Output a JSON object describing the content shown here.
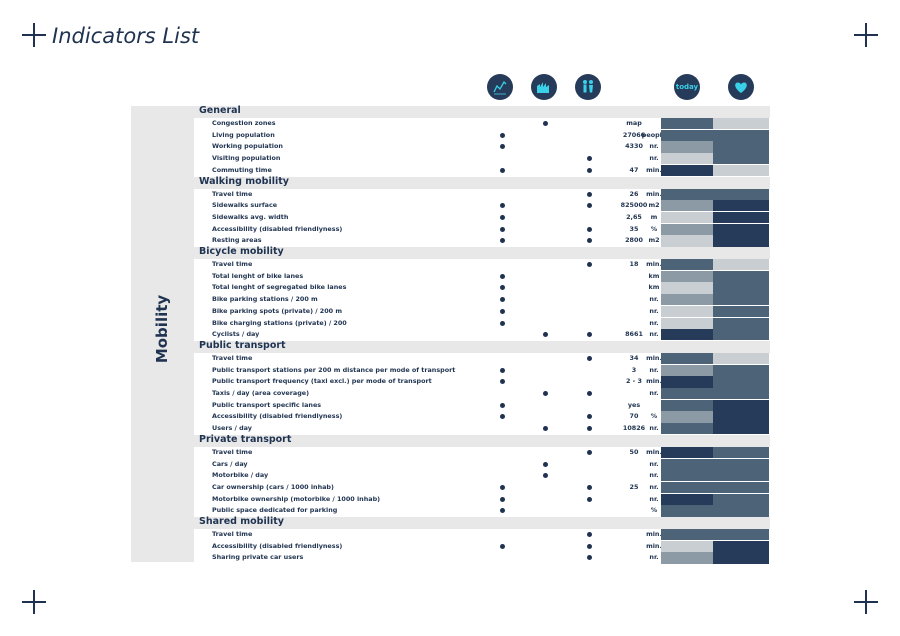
{
  "title": "Indicators List",
  "side_label": "Mobility",
  "header_icons": [
    "trend-chart-icon",
    "city-icon",
    "people-icon"
  ],
  "today_label": "today",
  "heart_icon": "heart-icon",
  "colors": {
    "navy": "#263a5a",
    "slate": "#4d6478",
    "steel": "#8c9aa6",
    "light": "#c9ced2",
    "accent": "#3ad0e8"
  },
  "sections": [
    {
      "title": "General",
      "rows": [
        {
          "label": "Congestion zones",
          "unit": "",
          "dots": [
            0,
            1,
            0
          ],
          "value": "map",
          "today": "slate",
          "heart": "light"
        },
        {
          "label": "Living population",
          "unit": "people",
          "dots": [
            1,
            0,
            0
          ],
          "value": "27066",
          "today": "slate",
          "heart": "slate"
        },
        {
          "label": "Working population",
          "unit": "nr.",
          "dots": [
            1,
            0,
            0
          ],
          "value": "4330",
          "today": "steel",
          "heart": "slate"
        },
        {
          "label": "Visiting population",
          "unit": "nr.",
          "dots": [
            0,
            0,
            1
          ],
          "value": "",
          "today": "light",
          "heart": "slate"
        },
        {
          "label": "Commuting time",
          "unit": "min.",
          "dots": [
            1,
            0,
            1
          ],
          "value": "47",
          "today": "navy",
          "heart": "light"
        }
      ]
    },
    {
      "title": "Walking mobility",
      "rows": [
        {
          "label": "Travel time",
          "unit": "min.",
          "dots": [
            0,
            0,
            1
          ],
          "value": "26",
          "today": "slate",
          "heart": "slate"
        },
        {
          "label": "Sidewalks surface",
          "unit": "m2",
          "dots": [
            1,
            0,
            1
          ],
          "value": "825000",
          "today": "steel",
          "heart": "navy"
        },
        {
          "label": "Sidewalks avg. width",
          "unit": "m",
          "dots": [
            1,
            0,
            0
          ],
          "value": "2,65",
          "today": "light",
          "heart": "navy"
        },
        {
          "label": "Accessibility (disabled friendlyness)",
          "unit": "%",
          "dots": [
            1,
            0,
            1
          ],
          "value": "35",
          "today": "steel",
          "heart": "navy"
        },
        {
          "label": "Resting areas",
          "unit": "m2",
          "dots": [
            1,
            0,
            1
          ],
          "value": "2800",
          "today": "light",
          "heart": "navy"
        }
      ]
    },
    {
      "title": "Bicycle mobility",
      "rows": [
        {
          "label": "Travel time",
          "unit": "min.",
          "dots": [
            0,
            0,
            1
          ],
          "value": "18",
          "today": "slate",
          "heart": "light"
        },
        {
          "label": "Total lenght of bike lanes",
          "unit": "km",
          "dots": [
            1,
            0,
            0
          ],
          "value": "",
          "today": "steel",
          "heart": "slate"
        },
        {
          "label": "Total lenght of segregated bike lanes",
          "unit": "km",
          "dots": [
            1,
            0,
            0
          ],
          "value": "",
          "today": "light",
          "heart": "slate"
        },
        {
          "label": "Bike parking stations / 200 m",
          "unit": "nr.",
          "dots": [
            1,
            0,
            0
          ],
          "value": "",
          "today": "steel",
          "heart": "slate"
        },
        {
          "label": "Bike parking spots (private) / 200 m",
          "unit": "nr.",
          "dots": [
            1,
            0,
            0
          ],
          "value": "",
          "today": "light",
          "heart": "slate"
        },
        {
          "label": "Bike charging stations (private) / 200",
          "unit": "nr.",
          "dots": [
            1,
            0,
            0
          ],
          "value": "",
          "today": "light",
          "heart": "slate"
        },
        {
          "label": "Cyclists / day",
          "unit": "nr.",
          "dots": [
            0,
            1,
            1
          ],
          "value": "8661",
          "today": "navy",
          "heart": "slate"
        }
      ]
    },
    {
      "title": "Public transport",
      "rows": [
        {
          "label": "Travel time",
          "unit": "min.",
          "dots": [
            0,
            0,
            1
          ],
          "value": "34",
          "today": "slate",
          "heart": "light"
        },
        {
          "label": "Public transport stations per 200 m distance per mode of transport",
          "unit": "nr.",
          "dots": [
            1,
            0,
            0
          ],
          "value": "3",
          "today": "steel",
          "heart": "slate"
        },
        {
          "label": "Public transport frequency (taxi excl.) per mode of transport",
          "unit": "min.",
          "dots": [
            1,
            0,
            0
          ],
          "value": "2 - 3",
          "today": "navy",
          "heart": "slate"
        },
        {
          "label": "Taxis / day (area coverage)",
          "unit": "nr.",
          "dots": [
            0,
            1,
            1
          ],
          "value": "",
          "today": "slate",
          "heart": "slate"
        },
        {
          "label": "Public transport specific lanes",
          "unit": "",
          "dots": [
            1,
            0,
            0
          ],
          "value": "yes",
          "today": "slate",
          "heart": "navy"
        },
        {
          "label": "Accessibility (disabled friendlyness)",
          "unit": "%",
          "dots": [
            1,
            0,
            1
          ],
          "value": "70",
          "today": "steel",
          "heart": "navy"
        },
        {
          "label": "Users / day",
          "unit": "nr.",
          "dots": [
            0,
            1,
            1
          ],
          "value": "10826",
          "today": "slate",
          "heart": "navy"
        }
      ]
    },
    {
      "title": "Private transport",
      "rows": [
        {
          "label": "Travel time",
          "unit": "min.",
          "dots": [
            0,
            0,
            1
          ],
          "value": "50",
          "today": "navy",
          "heart": "slate"
        },
        {
          "label": "Cars / day",
          "unit": "nr.",
          "dots": [
            0,
            1,
            0
          ],
          "value": "",
          "today": "slate",
          "heart": "slate"
        },
        {
          "label": "Motorbike / day",
          "unit": "nr.",
          "dots": [
            0,
            1,
            0
          ],
          "value": "",
          "today": "slate",
          "heart": "slate"
        },
        {
          "label": "Car ownership (cars / 1000 inhab)",
          "unit": "nr.",
          "dots": [
            1,
            0,
            1
          ],
          "value": "25",
          "today": "slate",
          "heart": "slate"
        },
        {
          "label": "Motorbike ownership (motorbike / 1000 inhab)",
          "unit": "nr.",
          "dots": [
            1,
            0,
            1
          ],
          "value": "",
          "today": "navy",
          "heart": "slate"
        },
        {
          "label": "Public space dedicated for parking",
          "unit": "%",
          "dots": [
            1,
            0,
            0
          ],
          "value": "",
          "today": "slate",
          "heart": "slate"
        }
      ]
    },
    {
      "title": "Shared mobility",
      "rows": [
        {
          "label": "Travel time",
          "unit": "min.",
          "dots": [
            0,
            0,
            1
          ],
          "value": "",
          "today": "slate",
          "heart": "slate"
        },
        {
          "label": "Accessibility (disabled friendlyness)",
          "unit": "min.",
          "dots": [
            1,
            0,
            1
          ],
          "value": "",
          "today": "light",
          "heart": "navy"
        },
        {
          "label": "Sharing private car users",
          "unit": "nr.",
          "dots": [
            0,
            0,
            1
          ],
          "value": "",
          "today": "steel",
          "heart": "navy"
        }
      ]
    }
  ]
}
